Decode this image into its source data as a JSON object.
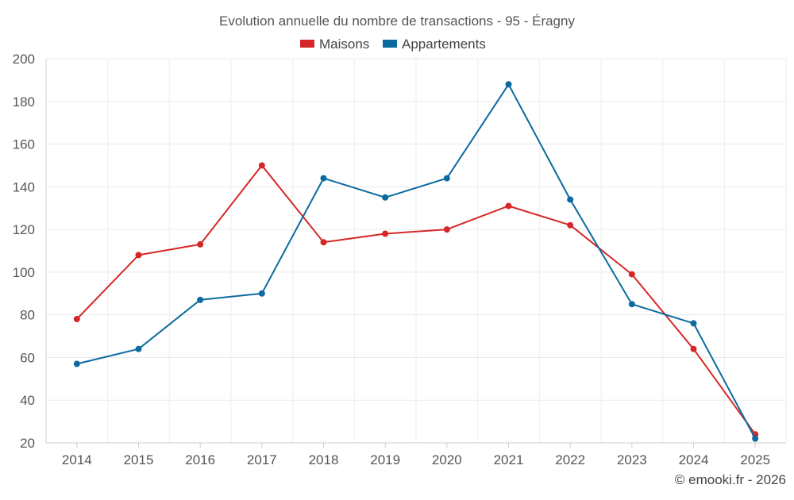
{
  "chart_data": {
    "type": "line",
    "title": "Evolution annuelle du nombre de transactions - 95 - Éragny",
    "xlabel": "",
    "ylabel": "",
    "categories": [
      "2014",
      "2015",
      "2016",
      "2017",
      "2018",
      "2019",
      "2020",
      "2021",
      "2022",
      "2023",
      "2024",
      "2025"
    ],
    "series": [
      {
        "name": "Maisons",
        "color": "#d62728",
        "values": [
          78,
          108,
          113,
          150,
          114,
          118,
          120,
          131,
          122,
          99,
          64,
          24
        ]
      },
      {
        "name": "Appartements",
        "color": "#0b6aa0",
        "values": [
          57,
          64,
          87,
          90,
          144,
          135,
          144,
          188,
          134,
          85,
          76,
          22
        ]
      }
    ],
    "ylim": [
      20,
      200
    ],
    "yticks": [
      20,
      40,
      60,
      80,
      100,
      120,
      140,
      160,
      180,
      200
    ],
    "grid": true,
    "legend": "top-center"
  },
  "credit": "© emooki.fr - 2026"
}
